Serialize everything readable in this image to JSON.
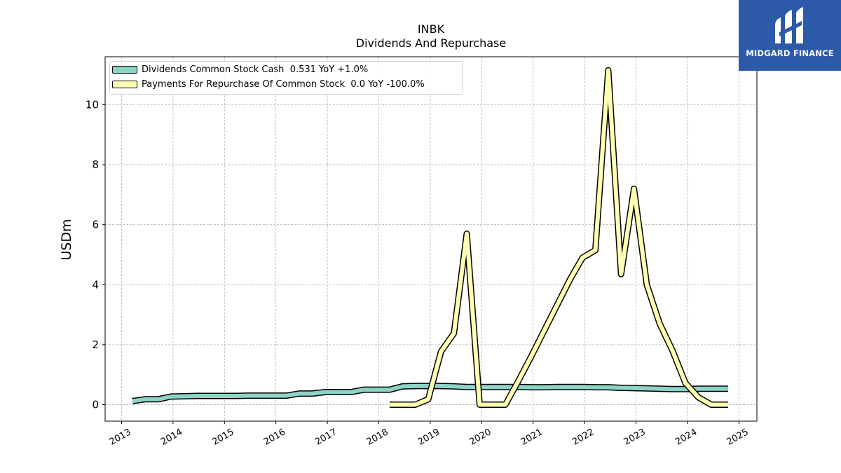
{
  "chart_data": {
    "type": "line",
    "title": "INBK",
    "subtitle": "Dividends And Repurchase",
    "ylabel": "USDm",
    "xlabel": "",
    "ylim": [
      -0.55,
      11.6
    ],
    "xlim": [
      2012.68,
      2025.35
    ],
    "x_ticks": [
      "2013",
      "2014",
      "2015",
      "2016",
      "2017",
      "2018",
      "2019",
      "2020",
      "2021",
      "2022",
      "2023",
      "2024",
      "2025"
    ],
    "y_ticks": [
      "0",
      "2",
      "4",
      "6",
      "8",
      "10"
    ],
    "grid": true,
    "legend_position": "top-left",
    "series": [
      {
        "name": "Dividends Common Stock Cash",
        "legend_label": "Dividends Common Stock Cash  0.531 YoY +1.0%",
        "color": "#8dd3c7",
        "x": [
          2013.21,
          2013.46,
          2013.71,
          2013.96,
          2014.21,
          2014.46,
          2014.71,
          2014.96,
          2015.21,
          2015.46,
          2015.71,
          2015.96,
          2016.21,
          2016.46,
          2016.71,
          2016.96,
          2017.21,
          2017.46,
          2017.71,
          2017.96,
          2018.21,
          2018.46,
          2018.71,
          2018.96,
          2019.21,
          2019.46,
          2019.71,
          2019.96,
          2020.21,
          2020.46,
          2020.71,
          2020.96,
          2021.21,
          2021.46,
          2021.71,
          2021.96,
          2022.21,
          2022.46,
          2022.71,
          2022.96,
          2023.21,
          2023.46,
          2023.71,
          2023.96,
          2024.21,
          2024.46,
          2024.71,
          2024.79
        ],
        "values": [
          0.12,
          0.18,
          0.18,
          0.27,
          0.28,
          0.29,
          0.29,
          0.29,
          0.29,
          0.3,
          0.3,
          0.3,
          0.3,
          0.37,
          0.37,
          0.42,
          0.42,
          0.42,
          0.5,
          0.5,
          0.5,
          0.61,
          0.62,
          0.62,
          0.62,
          0.61,
          0.59,
          0.59,
          0.59,
          0.59,
          0.59,
          0.58,
          0.58,
          0.59,
          0.59,
          0.59,
          0.58,
          0.58,
          0.56,
          0.55,
          0.54,
          0.53,
          0.52,
          0.52,
          0.53,
          0.53,
          0.53,
          0.53
        ]
      },
      {
        "name": "Payments For Repurchase Of Common Stock",
        "legend_label": "Payments For Repurchase Of Common Stock  0.0 YoY -100.0%",
        "color": "#ffffb3",
        "x": [
          2018.21,
          2018.46,
          2018.71,
          2018.96,
          2019.21,
          2019.46,
          2019.71,
          2019.96,
          2020.21,
          2020.46,
          2020.71,
          2020.96,
          2021.21,
          2021.46,
          2021.71,
          2021.96,
          2022.21,
          2022.46,
          2022.71,
          2022.96,
          2023.21,
          2023.46,
          2023.71,
          2023.96,
          2024.21,
          2024.46,
          2024.71,
          2024.79
        ],
        "values": [
          0.0,
          0.0,
          0.0,
          0.18,
          1.77,
          2.38,
          5.7,
          0.0,
          0.0,
          0.0,
          0.78,
          1.6,
          2.45,
          3.3,
          4.15,
          4.9,
          5.15,
          11.15,
          4.35,
          7.2,
          4.0,
          2.7,
          1.8,
          0.72,
          0.25,
          0.0,
          0.0,
          0.0
        ]
      }
    ]
  },
  "branding": {
    "logo_text": "MIDGARD FINANCE",
    "logo_color": "#2d5aa8"
  }
}
